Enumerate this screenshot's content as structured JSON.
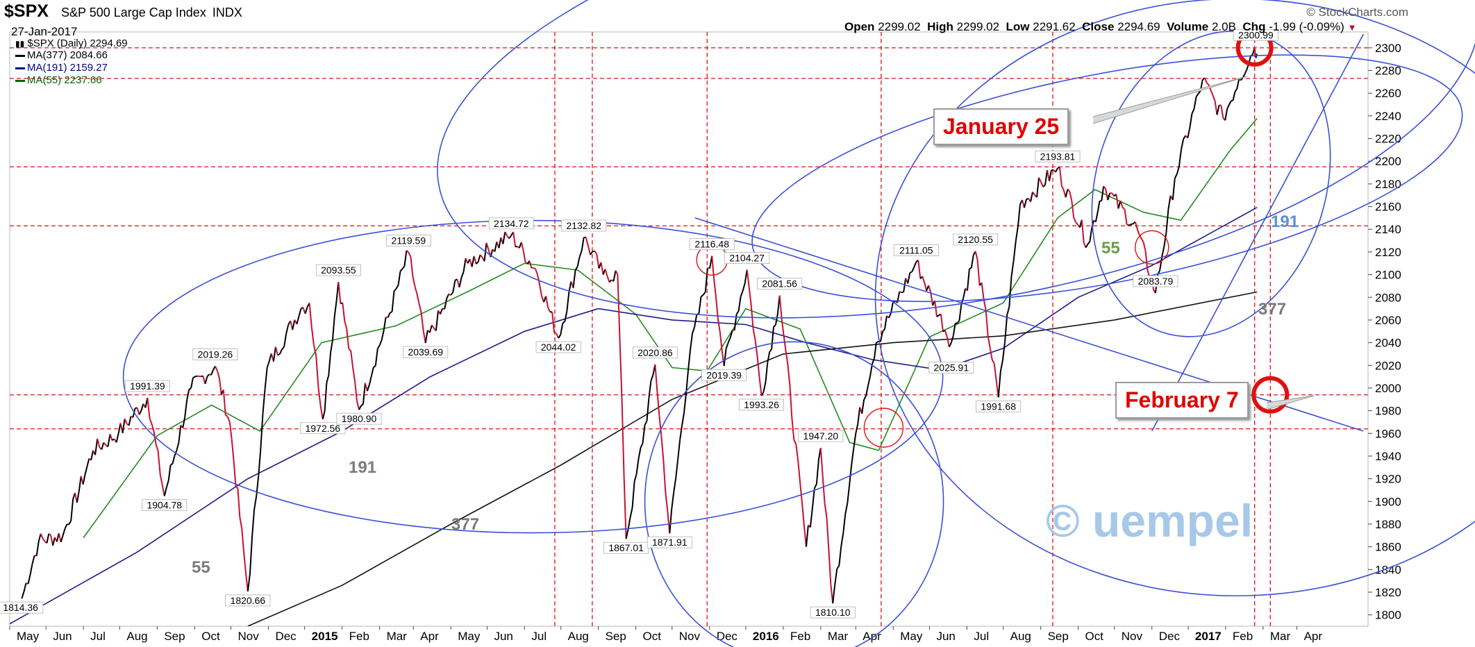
{
  "header": {
    "symbol": "$SPX",
    "description": "S&P 500 Large Cap Index",
    "exchange": "INDX",
    "date": "27-Jan-2017",
    "brand": "© StockCharts.com",
    "ohlc": {
      "open_label": "Open",
      "open": "2299.02",
      "high_label": "High",
      "high": "2299.02",
      "low_label": "Low",
      "low": "2291.62",
      "close_label": "Close",
      "close": "2294.69",
      "volume_label": "Volume",
      "volume": "2.0B",
      "chg_label": "Chg",
      "chg": "-1.99 (-0.09%)"
    }
  },
  "legend": [
    {
      "label": "$SPX (Daily) 2294.69",
      "color": "#000000",
      "icon": "candle-icon"
    },
    {
      "label": "MA(377) 2084.66",
      "color": "#000000"
    },
    {
      "label": "MA(191) 2159.27",
      "color": "#00008b"
    },
    {
      "label": "MA(55) 2237.66",
      "color": "#006400"
    }
  ],
  "annotations": {
    "callout_1": "January 25",
    "callout_2": "February 7",
    "watermark": "© uempel",
    "ma_tags": [
      {
        "text": "55",
        "color": "#6a9e46"
      },
      {
        "text": "191",
        "color": "#5b8fd6"
      },
      {
        "text": "377",
        "color": "#7a7a7a"
      },
      {
        "text": "191",
        "color": "#7a7a7a"
      },
      {
        "text": "377",
        "color": "#7a7a7a"
      },
      {
        "text": "55",
        "color": "#7a7a7a"
      }
    ]
  },
  "chart_data": {
    "type": "line",
    "title": "$SPX S&P 500 Large Cap Index INDX",
    "ylim": [
      1790,
      2314
    ],
    "y_ticks": [
      1800,
      1820,
      1840,
      1860,
      1880,
      1900,
      1920,
      1940,
      1960,
      1980,
      2000,
      2020,
      2040,
      2060,
      2080,
      2100,
      2120,
      2140,
      2160,
      2180,
      2200,
      2220,
      2240,
      2260,
      2280,
      2300
    ],
    "x_tick_labels": [
      {
        "text": "May",
        "bold": false
      },
      {
        "text": "Jun",
        "bold": false
      },
      {
        "text": "Jul",
        "bold": false
      },
      {
        "text": "Aug",
        "bold": false
      },
      {
        "text": "Sep",
        "bold": false
      },
      {
        "text": "Oct",
        "bold": false
      },
      {
        "text": "Nov",
        "bold": false
      },
      {
        "text": "Dec",
        "bold": false
      },
      {
        "text": "2015",
        "bold": true
      },
      {
        "text": "Feb",
        "bold": false
      },
      {
        "text": "Mar",
        "bold": false
      },
      {
        "text": "Apr",
        "bold": false
      },
      {
        "text": "May",
        "bold": false
      },
      {
        "text": "Jun",
        "bold": false
      },
      {
        "text": "Jul",
        "bold": false
      },
      {
        "text": "Aug",
        "bold": false
      },
      {
        "text": "Sep",
        "bold": false
      },
      {
        "text": "Oct",
        "bold": false
      },
      {
        "text": "Nov",
        "bold": false
      },
      {
        "text": "Dec",
        "bold": false
      },
      {
        "text": "2016",
        "bold": true
      },
      {
        "text": "Feb",
        "bold": false
      },
      {
        "text": "Mar",
        "bold": false
      },
      {
        "text": "Apr",
        "bold": false
      },
      {
        "text": "May",
        "bold": false
      },
      {
        "text": "Jun",
        "bold": false
      },
      {
        "text": "Jul",
        "bold": false
      },
      {
        "text": "Aug",
        "bold": false
      },
      {
        "text": "Sep",
        "bold": false
      },
      {
        "text": "Oct",
        "bold": false
      },
      {
        "text": "Nov",
        "bold": false
      },
      {
        "text": "Dec",
        "bold": false
      },
      {
        "text": "2017",
        "bold": true
      },
      {
        "text": "Feb",
        "bold": false
      },
      {
        "text": "Mar",
        "bold": false
      },
      {
        "text": "Apr",
        "bold": false
      }
    ],
    "horizontal_levels": [
      2300,
      2273,
      2195,
      2143,
      1994,
      1964
    ],
    "price_series": {
      "name": "$SPX (Daily)",
      "points": [
        [
          "2014-04-11",
          1814.36
        ],
        [
          "2014-04-25",
          1865
        ],
        [
          "2014-05-15",
          1870
        ],
        [
          "2014-06-09",
          1945
        ],
        [
          "2014-06-30",
          1960
        ],
        [
          "2014-07-24",
          1991.39
        ],
        [
          "2014-08-07",
          1904.78
        ],
        [
          "2014-08-29",
          2000
        ],
        [
          "2014-09-18",
          2019.26
        ],
        [
          "2014-09-30",
          1970
        ],
        [
          "2014-10-15",
          1820.66
        ],
        [
          "2014-10-31",
          2018
        ],
        [
          "2014-11-28",
          2070
        ],
        [
          "2014-12-05",
          2075
        ],
        [
          "2014-12-16",
          1972.56
        ],
        [
          "2014-12-29",
          2093.55
        ],
        [
          "2015-01-15",
          1980.9
        ],
        [
          "2015-02-25",
          2119.59
        ],
        [
          "2015-03-11",
          2039.69
        ],
        [
          "2015-04-15",
          2110
        ],
        [
          "2015-05-21",
          2134.72
        ],
        [
          "2015-06-10",
          2105
        ],
        [
          "2015-06-29",
          2044.02
        ],
        [
          "2015-07-20",
          2132.82
        ],
        [
          "2015-08-05",
          2100
        ],
        [
          "2015-08-17",
          2100
        ],
        [
          "2015-08-24",
          1867.01
        ],
        [
          "2015-09-17",
          2020.86
        ],
        [
          "2015-09-29",
          1871.91
        ],
        [
          "2015-10-16",
          2033
        ],
        [
          "2015-11-03",
          2116.48
        ],
        [
          "2015-11-13",
          2019.39
        ],
        [
          "2015-12-02",
          2104.27
        ],
        [
          "2015-12-14",
          1993.26
        ],
        [
          "2015-12-29",
          2081.56
        ],
        [
          "2016-01-20",
          1860
        ],
        [
          "2016-02-01",
          1947.2
        ],
        [
          "2016-02-11",
          1810.1
        ],
        [
          "2016-03-01",
          1960
        ],
        [
          "2016-03-18",
          2040
        ],
        [
          "2016-04-20",
          2111.05
        ],
        [
          "2016-05-19",
          2040
        ],
        [
          "2016-06-08",
          2120.55
        ],
        [
          "2016-06-27",
          1991.68
        ],
        [
          "2016-07-15",
          2162
        ],
        [
          "2016-08-15",
          2193.81
        ],
        [
          "2016-09-09",
          2127
        ],
        [
          "2016-09-22",
          2178
        ],
        [
          "2016-10-20",
          2140
        ],
        [
          "2016-11-04",
          2083.79
        ],
        [
          "2016-11-20",
          2185
        ],
        [
          "2016-12-13",
          2272
        ],
        [
          "2016-12-30",
          2238
        ],
        [
          "2017-01-12",
          2272
        ],
        [
          "2017-01-25",
          2300
        ],
        [
          "2017-01-27",
          2294.69
        ]
      ]
    },
    "moving_averages": [
      {
        "name": "MA(55)",
        "value": 2237.66,
        "color": "#228b22",
        "points": [
          [
            "2014-06-01",
            1868
          ],
          [
            "2014-08-01",
            1958
          ],
          [
            "2014-09-15",
            1985
          ],
          [
            "2014-10-25",
            1962
          ],
          [
            "2014-12-15",
            2040
          ],
          [
            "2015-02-15",
            2055
          ],
          [
            "2015-04-15",
            2085
          ],
          [
            "2015-06-01",
            2110
          ],
          [
            "2015-07-15",
            2104
          ],
          [
            "2015-09-01",
            2065
          ],
          [
            "2015-10-01",
            2018
          ],
          [
            "2015-10-30",
            2015
          ],
          [
            "2015-12-01",
            2070
          ],
          [
            "2016-01-15",
            2052
          ],
          [
            "2016-02-25",
            1952
          ],
          [
            "2016-03-20",
            1945
          ],
          [
            "2016-05-01",
            2045
          ],
          [
            "2016-07-01",
            2075
          ],
          [
            "2016-08-15",
            2150
          ],
          [
            "2016-09-15",
            2175
          ],
          [
            "2016-10-25",
            2155
          ],
          [
            "2016-11-25",
            2148
          ],
          [
            "2017-01-05",
            2210
          ],
          [
            "2017-01-27",
            2237.66
          ]
        ]
      },
      {
        "name": "MA(191)",
        "value": 2159.27,
        "color": "#1a1a8b",
        "points": [
          [
            "2014-04-01",
            1792
          ],
          [
            "2014-07-15",
            1855
          ],
          [
            "2014-10-15",
            1920
          ],
          [
            "2015-01-01",
            1962
          ],
          [
            "2015-03-15",
            2010
          ],
          [
            "2015-06-01",
            2050
          ],
          [
            "2015-08-01",
            2070
          ],
          [
            "2015-10-01",
            2060
          ],
          [
            "2015-12-01",
            2056
          ],
          [
            "2016-01-20",
            2040
          ],
          [
            "2016-03-15",
            2025
          ],
          [
            "2016-05-10",
            2016
          ],
          [
            "2016-07-01",
            2035
          ],
          [
            "2016-09-01",
            2080
          ],
          [
            "2016-11-01",
            2108
          ],
          [
            "2017-01-27",
            2159.27
          ]
        ]
      },
      {
        "name": "MA(377)",
        "value": 2084.66,
        "color": "#111111",
        "points": [
          [
            "2014-10-15",
            1790
          ],
          [
            "2015-01-01",
            1826
          ],
          [
            "2015-04-01",
            1880
          ],
          [
            "2015-07-01",
            1932
          ],
          [
            "2015-10-01",
            1990
          ],
          [
            "2016-01-01",
            2030
          ],
          [
            "2016-04-01",
            2040
          ],
          [
            "2016-07-01",
            2046
          ],
          [
            "2016-10-01",
            2060
          ],
          [
            "2017-01-27",
            2084.66
          ]
        ]
      }
    ],
    "data_labels": [
      {
        "text": "1814.36",
        "date": "2014-04-10",
        "value": 1814.36
      },
      {
        "text": "1991.39",
        "date": "2014-07-24",
        "value": 1991.39
      },
      {
        "text": "1904.78",
        "date": "2014-08-07",
        "value": 1904.78
      },
      {
        "text": "2019.26",
        "date": "2014-09-18",
        "value": 2019.26
      },
      {
        "text": "1820.66",
        "date": "2014-10-15",
        "value": 1820.66
      },
      {
        "text": "2093.55",
        "date": "2014-12-29",
        "value": 2093.55
      },
      {
        "text": "1972.56",
        "date": "2014-12-16",
        "value": 1972.56
      },
      {
        "text": "1980.90",
        "date": "2015-01-15",
        "value": 1980.9
      },
      {
        "text": "2119.59",
        "date": "2015-02-25",
        "value": 2119.59
      },
      {
        "text": "2039.69",
        "date": "2015-03-11",
        "value": 2039.69
      },
      {
        "text": "2134.72",
        "date": "2015-05-21",
        "value": 2134.72
      },
      {
        "text": "2044.02",
        "date": "2015-06-29",
        "value": 2044.02
      },
      {
        "text": "2132.82",
        "date": "2015-07-20",
        "value": 2132.82
      },
      {
        "text": "1867.01",
        "date": "2015-08-24",
        "value": 1867.01
      },
      {
        "text": "2020.86",
        "date": "2015-09-17",
        "value": 2020.86
      },
      {
        "text": "1871.91",
        "date": "2015-09-29",
        "value": 1871.91
      },
      {
        "text": "2116.48",
        "date": "2015-11-03",
        "value": 2116.48
      },
      {
        "text": "2019.39",
        "date": "2015-11-13",
        "value": 2019.39
      },
      {
        "text": "2104.27",
        "date": "2015-12-02",
        "value": 2104.27
      },
      {
        "text": "1993.26",
        "date": "2015-12-14",
        "value": 1993.26
      },
      {
        "text": "2081.56",
        "date": "2015-12-29",
        "value": 2081.56
      },
      {
        "text": "1947.20",
        "date": "2016-02-01",
        "value": 1947.2
      },
      {
        "text": "1810.10",
        "date": "2016-02-11",
        "value": 1810.1
      },
      {
        "text": "2111.05",
        "date": "2016-04-20",
        "value": 2111.05
      },
      {
        "text": "2025.91",
        "date": "2016-05-19",
        "value": 2025.91
      },
      {
        "text": "2120.55",
        "date": "2016-06-08",
        "value": 2120.55
      },
      {
        "text": "1991.68",
        "date": "2016-06-27",
        "value": 1991.68
      },
      {
        "text": "2193.81",
        "date": "2016-08-15",
        "value": 2193.81
      },
      {
        "text": "2083.79",
        "date": "2016-11-04",
        "value": 2083.79
      },
      {
        "text": "2300.99",
        "date": "2017-01-26",
        "value": 2300.99
      }
    ]
  }
}
